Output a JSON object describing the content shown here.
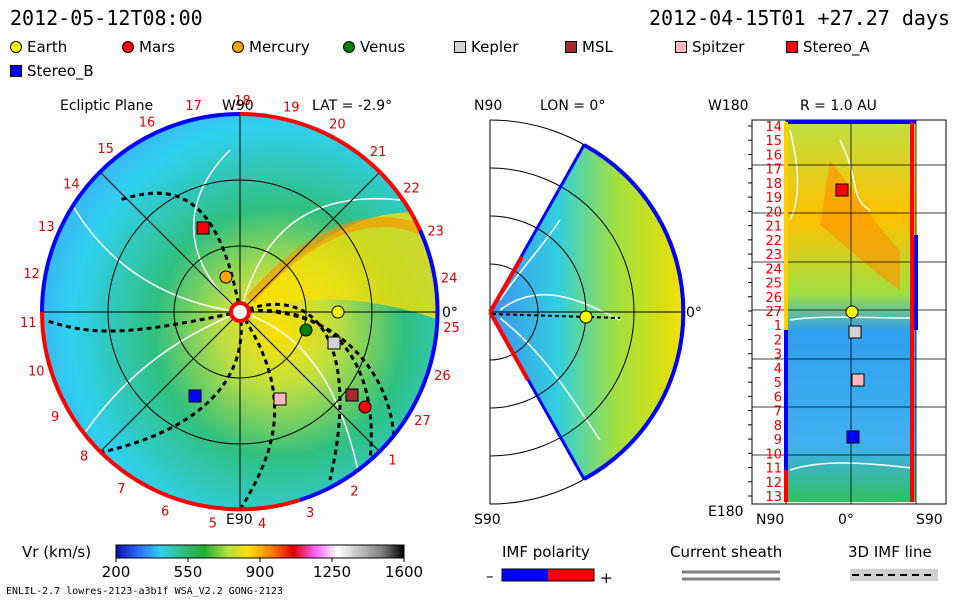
{
  "header": {
    "left": "2012-05-12T08:00",
    "right": "2012-04-15T01 +27.27 days"
  },
  "legend": [
    {
      "name": "Earth",
      "shape": "circle",
      "color": "#ffff00"
    },
    {
      "name": "Mars",
      "shape": "circle",
      "color": "#ff0000"
    },
    {
      "name": "Mercury",
      "shape": "circle",
      "color": "#ffa500"
    },
    {
      "name": "Venus",
      "shape": "circle",
      "color": "#008000"
    },
    {
      "name": "Kepler",
      "shape": "square",
      "color": "#d3d3d3"
    },
    {
      "name": "MSL",
      "shape": "square",
      "color": "#a52a2a"
    },
    {
      "name": "Spitzer",
      "shape": "square",
      "color": "#ffb6c1"
    },
    {
      "name": "Stereo_A",
      "shape": "square",
      "color": "#ff0000"
    },
    {
      "name": "Stereo_B",
      "shape": "square",
      "color": "#0000ff"
    }
  ],
  "panels": {
    "ecliptic": {
      "title": "Ecliptic Plane",
      "top_label": "W90",
      "lat_label": "LAT = -2.9°",
      "bottom_label": "E90",
      "right_label": "0°",
      "rotation_ticks": [
        "19",
        "20",
        "21",
        "22",
        "23",
        "24",
        "25",
        "26",
        "27",
        "1",
        "2",
        "3",
        "4",
        "5",
        "6",
        "7",
        "8",
        "9",
        "10",
        "11",
        "12",
        "13",
        "14",
        "15",
        "16",
        "17",
        "18"
      ]
    },
    "meridional": {
      "top_label": "N90",
      "lon_label": "LON = 0°",
      "bottom_label": "S90",
      "right_label": "0°"
    },
    "carrington": {
      "top_left": "W180",
      "r_label": "R = 1.0 AU",
      "bottom_left": "E180",
      "x_left": "N90",
      "x_mid": "0°",
      "x_right": "S90",
      "rows": [
        "14",
        "15",
        "16",
        "17",
        "18",
        "19",
        "20",
        "21",
        "22",
        "23",
        "24",
        "25",
        "26",
        "27",
        "1",
        "2",
        "3",
        "4",
        "5",
        "6",
        "7",
        "8",
        "9",
        "10",
        "11",
        "12",
        "13"
      ]
    }
  },
  "colorbar": {
    "title": "Vr (km/s)",
    "ticks": [
      "200",
      "550",
      "900",
      "1250",
      "1600"
    ],
    "colors": [
      "#1010b0",
      "#2a6bff",
      "#2fd0f0",
      "#30c080",
      "#20b030",
      "#b0e040",
      "#ffe000",
      "#ff8000",
      "#e00000",
      "#ff60ff",
      "#ffffff",
      "#c0c0c0",
      "#808080",
      "#000000"
    ]
  },
  "imf_polarity": {
    "title": "IMF polarity",
    "minus": "–",
    "plus": "+",
    "neg_color": "#0000ff",
    "pos_color": "#ff0000"
  },
  "current_sheath": {
    "title": "Current sheath"
  },
  "imf_line": {
    "title": "3D IMF line"
  },
  "footer": "ENLIL-2.7 lowres-2123-a3b1f WSA_V2.2 GONG-2123"
}
